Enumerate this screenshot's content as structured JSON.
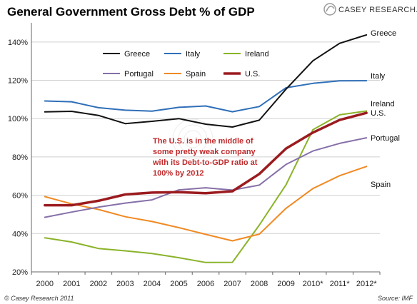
{
  "brand": "CASEY RESEARCH.COM",
  "chart_data": {
    "type": "line",
    "title": "General Government Gross Debt % of GDP",
    "xlabel": "",
    "ylabel": "",
    "categories": [
      "2000",
      "2001",
      "2002",
      "2003",
      "2004",
      "2005",
      "2006",
      "2007",
      "2008",
      "2009",
      "2010*",
      "2011*",
      "2012*"
    ],
    "ylim": [
      20,
      150
    ],
    "yticks": [
      "20%",
      "40%",
      "60%",
      "80%",
      "100%",
      "120%",
      "140%"
    ],
    "grid": "horizontal",
    "legend_position": "top-left",
    "series": [
      {
        "name": "Greece",
        "color": "#111111",
        "width": 2,
        "end_label": "Greece",
        "values": [
          103.5,
          103.8,
          101.7,
          97.4,
          98.6,
          100.0,
          97.1,
          95.6,
          99.2,
          115.4,
          130.2,
          139.3,
          143.7
        ]
      },
      {
        "name": "Italy",
        "color": "#2f6fb8",
        "width": 2,
        "end_label": "Italy",
        "values": [
          109.2,
          108.8,
          105.7,
          104.4,
          103.9,
          105.9,
          106.6,
          103.6,
          106.3,
          116.1,
          118.4,
          119.7,
          119.8
        ]
      },
      {
        "name": "Ireland",
        "color": "#8ab329",
        "width": 2,
        "end_label": "Ireland",
        "values": [
          37.8,
          35.6,
          32.2,
          31.0,
          29.6,
          27.4,
          24.9,
          25.0,
          44.4,
          65.5,
          94.2,
          102.0,
          104.0
        ]
      },
      {
        "name": "Portugal",
        "color": "#8670a8",
        "width": 2,
        "end_label": "Portugal",
        "values": [
          48.5,
          51.2,
          53.8,
          55.9,
          57.6,
          62.8,
          63.9,
          62.7,
          65.3,
          76.1,
          83.1,
          87.1,
          90.0
        ]
      },
      {
        "name": "Spain",
        "color": "#f08a24",
        "width": 2,
        "end_label": "Spain",
        "values": [
          59.3,
          55.5,
          52.6,
          48.8,
          46.3,
          43.1,
          39.6,
          36.2,
          39.7,
          53.2,
          63.5,
          70.2,
          75.0
        ]
      },
      {
        "name": "U.S.",
        "color": "#9b1b1f",
        "width": 3.5,
        "end_label": "U.S.",
        "values": [
          54.8,
          54.8,
          57.1,
          60.4,
          61.4,
          61.6,
          61.1,
          62.1,
          71.1,
          84.4,
          92.7,
          99.3,
          103.0
        ]
      }
    ],
    "annotation": [
      "The U.S. is in the middle of",
      "some pretty weak company",
      "with its Debt-to-GDP ratio at",
      "100% by 2012"
    ]
  },
  "footer": {
    "copyright": "© Casey Research 2011",
    "source": "Source: IMF"
  }
}
